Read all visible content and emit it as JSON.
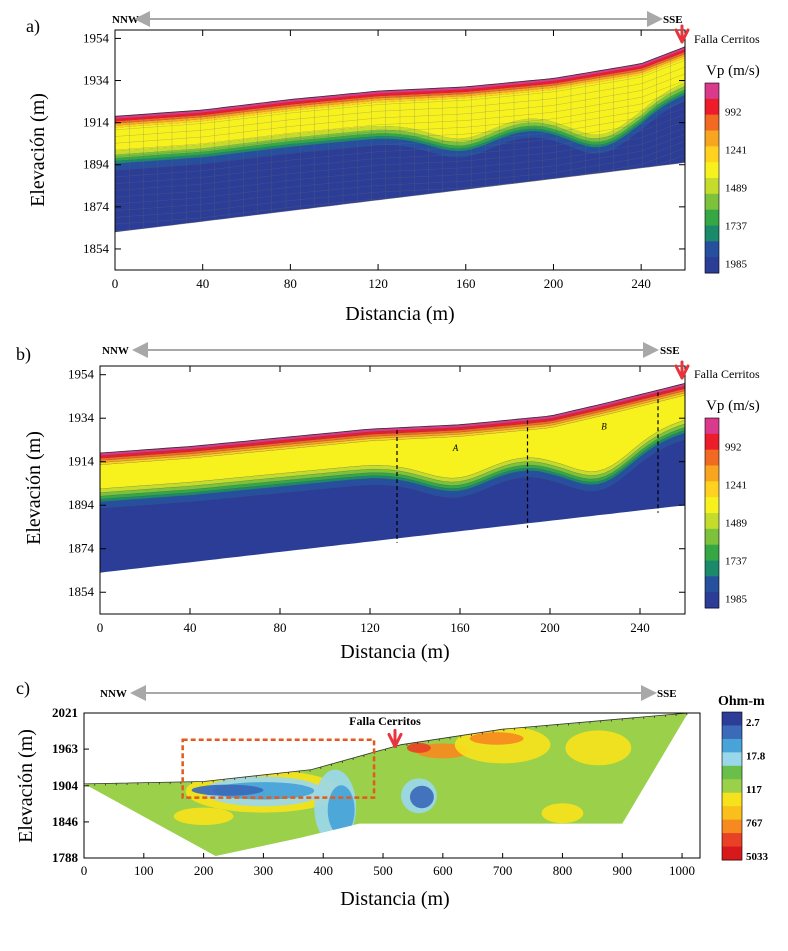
{
  "chart_data": [
    {
      "panel": "a)",
      "type": "heatmap",
      "direction_left": "NNW",
      "direction_right": "SSE",
      "fault_label": "Falla Cerritos",
      "xlabel": "Distancia (m)",
      "ylabel": "Elevación (m)",
      "xlim": [
        0,
        260
      ],
      "ylim": [
        1844,
        1958
      ],
      "xticks": [
        "0",
        "40",
        "80",
        "120",
        "160",
        "200",
        "240"
      ],
      "yticks": [
        "1954",
        "1934",
        "1914",
        "1894",
        "1874",
        "1854"
      ],
      "legend_title": "Vp (m/s)",
      "legend_ticks": [
        "992",
        "1241",
        "1489",
        "1737",
        "1985"
      ],
      "surface": [
        [
          0,
          1917
        ],
        [
          40,
          1920
        ],
        [
          80,
          1925
        ],
        [
          120,
          1929
        ],
        [
          160,
          1931
        ],
        [
          200,
          1935
        ],
        [
          240,
          1942
        ],
        [
          260,
          1950
        ]
      ],
      "bottom": [
        [
          0,
          1862
        ],
        [
          260,
          1895
        ]
      ],
      "style": "gridded"
    },
    {
      "panel": "b)",
      "type": "heatmap",
      "direction_left": "NNW",
      "direction_right": "SSE",
      "fault_label": "Falla Cerritos",
      "xlabel": "Distancia (m)",
      "ylabel": "Elevación (m)",
      "xlim": [
        0,
        260
      ],
      "ylim": [
        1844,
        1958
      ],
      "xticks": [
        "0",
        "40",
        "80",
        "120",
        "160",
        "200",
        "240"
      ],
      "yticks": [
        "1954",
        "1934",
        "1914",
        "1894",
        "1874",
        "1854"
      ],
      "legend_title": "Vp (m/s)",
      "legend_ticks": [
        "992",
        "1241",
        "1489",
        "1737",
        "1985"
      ],
      "zone_labels": [
        "A",
        "B"
      ],
      "dashed_lines_x": [
        132,
        190,
        248
      ],
      "surface": [
        [
          0,
          1918
        ],
        [
          40,
          1921
        ],
        [
          80,
          1925
        ],
        [
          120,
          1929
        ],
        [
          160,
          1931
        ],
        [
          200,
          1935
        ],
        [
          225,
          1941
        ],
        [
          260,
          1950
        ]
      ],
      "bottom": [
        [
          0,
          1863
        ],
        [
          260,
          1894
        ]
      ],
      "style": "contoured"
    },
    {
      "panel": "c)",
      "type": "heatmap",
      "direction_left": "NNW",
      "direction_right": "SSE",
      "fault_label": "Falla Cerritos",
      "xlabel": "Distancia (m)",
      "ylabel": "Elevación (m)",
      "xlim": [
        0,
        1030
      ],
      "ylim": [
        1788,
        2021
      ],
      "xticks": [
        "0",
        "100",
        "200",
        "300",
        "400",
        "500",
        "600",
        "700",
        "800",
        "900",
        "1000"
      ],
      "yticks": [
        "2021",
        "1963",
        "1904",
        "1846",
        "1788"
      ],
      "legend_title": "Ohm-m",
      "legend_ticks": [
        "2.7",
        "17.8",
        "117",
        "767",
        "5033"
      ],
      "surface": [
        [
          0,
          1907
        ],
        [
          200,
          1911
        ],
        [
          380,
          1930
        ],
        [
          530,
          1970
        ],
        [
          700,
          1995
        ],
        [
          1010,
          2021
        ]
      ],
      "bottom_outline": [
        [
          0,
          1907
        ],
        [
          220,
          1791
        ],
        [
          360,
          1820
        ],
        [
          460,
          1843
        ],
        [
          900,
          1843
        ],
        [
          1010,
          2021
        ]
      ],
      "fault_x": 520,
      "highlight_box": {
        "x": [
          165,
          485
        ],
        "y": [
          1885,
          1978
        ]
      }
    }
  ],
  "colors": {
    "vp_scale": [
      "#d93a8c",
      "#ec1c2a",
      "#f26a21",
      "#f8a51f",
      "#ffd21f",
      "#f7f21e",
      "#c4dc2b",
      "#7cc23b",
      "#35a845",
      "#1a8a6a",
      "#26509e",
      "#2b3d96"
    ],
    "res_scale": [
      "#2b3d96",
      "#3b6ab8",
      "#47a3d8",
      "#9bd7ea",
      "#6abf4b",
      "#9ad04a",
      "#f6e21c",
      "#fbbf1c",
      "#f68a20",
      "#e94125",
      "#d7191c"
    ],
    "fault_arrow": "#e8353d",
    "direction_arrow": "#a8a8a8",
    "highlight_box": "#e25a1c"
  }
}
